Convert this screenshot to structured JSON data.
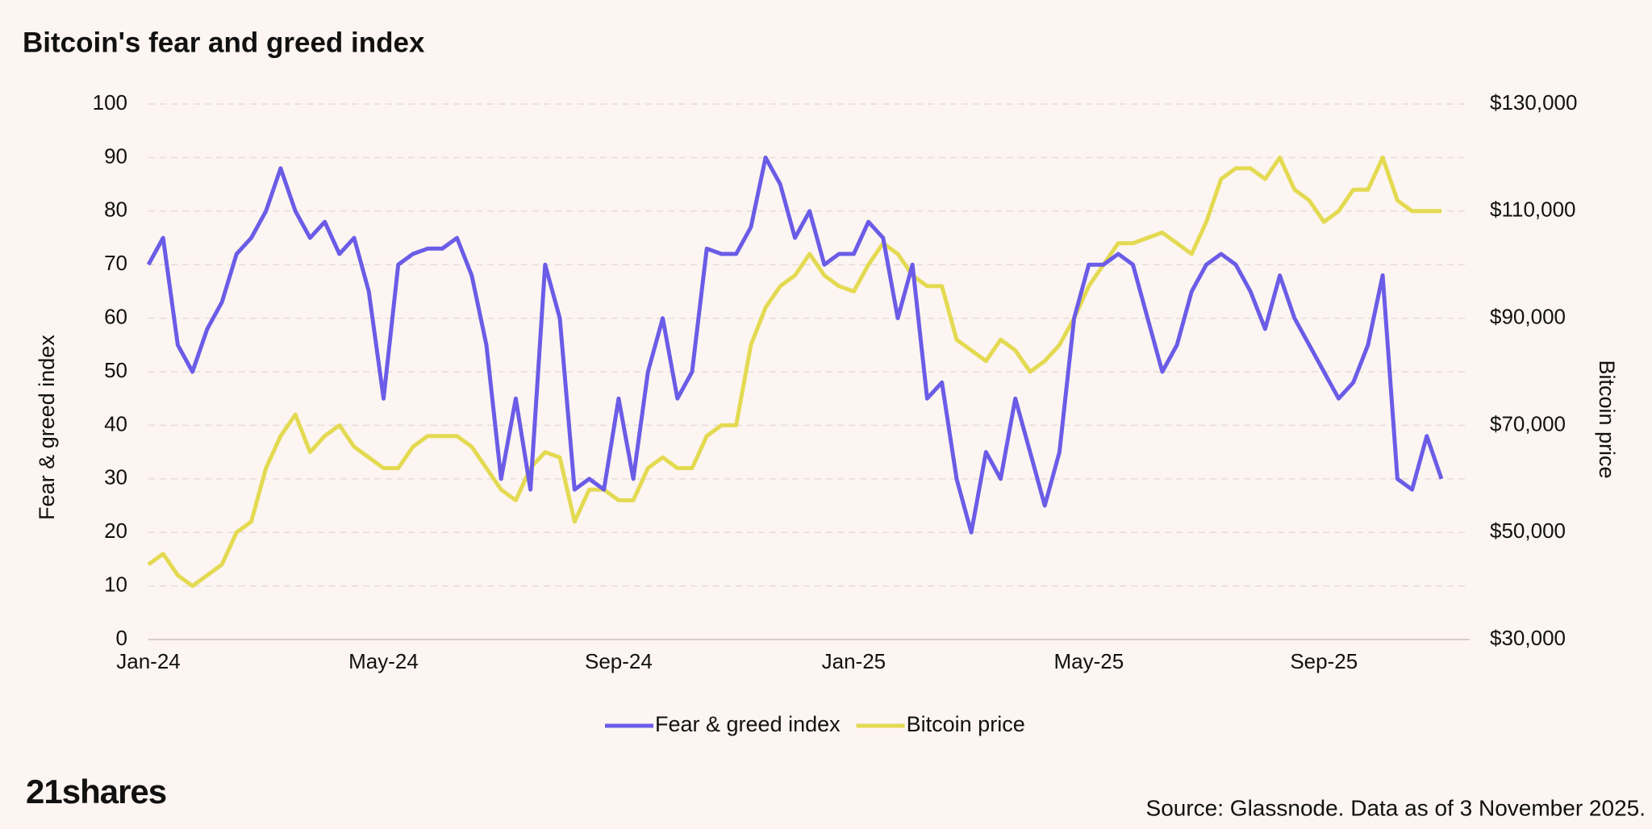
{
  "chart_data": {
    "type": "line",
    "title": "Bitcoin's fear and greed index",
    "ylabel": "Fear & greed index",
    "y2label": "Bitcoin price",
    "source": "Source: Glassnode. Data as of 3 November 2025.",
    "logo": "21shares",
    "categories": [
      "Jan-24",
      null,
      null,
      null,
      null,
      null,
      null,
      null,
      null,
      null,
      null,
      null,
      null,
      null,
      null,
      null,
      "May-24",
      null,
      null,
      null,
      null,
      null,
      null,
      null,
      null,
      null,
      null,
      null,
      null,
      null,
      null,
      null,
      "Sep-24",
      null,
      null,
      null,
      null,
      null,
      null,
      null,
      null,
      null,
      null,
      null,
      null,
      null,
      null,
      null,
      "Jan-25",
      null,
      null,
      null,
      null,
      null,
      null,
      null,
      null,
      null,
      null,
      null,
      null,
      null,
      null,
      null,
      "May-25",
      null,
      null,
      null,
      null,
      null,
      null,
      null,
      null,
      null,
      null,
      null,
      null,
      null,
      null,
      null,
      "Sep-25",
      null,
      null,
      null,
      null,
      null,
      null,
      null,
      null
    ],
    "series": [
      {
        "name": "Fear & greed index",
        "color": "#6b5ce7",
        "axis": "y",
        "values": [
          70,
          75,
          55,
          50,
          58,
          63,
          72,
          75,
          80,
          88,
          80,
          75,
          78,
          72,
          75,
          65,
          45,
          70,
          72,
          73,
          73,
          75,
          68,
          55,
          30,
          45,
          28,
          70,
          60,
          28,
          30,
          28,
          45,
          30,
          50,
          60,
          45,
          50,
          73,
          72,
          72,
          77,
          90,
          85,
          75,
          80,
          70,
          72,
          72,
          78,
          75,
          60,
          70,
          45,
          48,
          30,
          20,
          35,
          30,
          45,
          35,
          25,
          35,
          60,
          70,
          70,
          72,
          70,
          60,
          50,
          55,
          65,
          70,
          72,
          70,
          65,
          58,
          68,
          60,
          55,
          50,
          45,
          48,
          55,
          68,
          30,
          28,
          38,
          30
        ]
      },
      {
        "name": "Bitcoin price",
        "color": "#e3da52",
        "axis": "y2",
        "values": [
          44000,
          46000,
          42000,
          40000,
          42000,
          44000,
          50000,
          52000,
          62000,
          68000,
          72000,
          65000,
          68000,
          70000,
          66000,
          64000,
          62000,
          62000,
          66000,
          68000,
          68000,
          68000,
          66000,
          62000,
          58000,
          56000,
          62000,
          65000,
          64000,
          52000,
          58000,
          58000,
          56000,
          56000,
          62000,
          64000,
          62000,
          62000,
          68000,
          70000,
          70000,
          85000,
          92000,
          96000,
          98000,
          102000,
          98000,
          96000,
          95000,
          100000,
          104000,
          102000,
          98000,
          96000,
          96000,
          86000,
          84000,
          82000,
          86000,
          84000,
          80000,
          82000,
          85000,
          90000,
          96000,
          100000,
          104000,
          104000,
          105000,
          106000,
          104000,
          102000,
          108000,
          116000,
          118000,
          118000,
          116000,
          120000,
          114000,
          112000,
          108000,
          110000,
          114000,
          114000,
          120000,
          112000,
          110000,
          110000,
          110000
        ]
      }
    ],
    "ylim": [
      0,
      100
    ],
    "yticks": [
      0,
      10,
      20,
      30,
      40,
      50,
      60,
      70,
      80,
      90,
      100
    ],
    "y2lim": [
      30000,
      130000
    ],
    "y2ticks": [
      {
        "value": 30000,
        "label": "$30,000"
      },
      {
        "value": 50000,
        "label": "$50,000"
      },
      {
        "value": 70000,
        "label": "$70,000"
      },
      {
        "value": 90000,
        "label": "$90,000"
      },
      {
        "value": 110000,
        "label": "$110,000"
      },
      {
        "value": 130000,
        "label": "$130,000"
      }
    ],
    "grid": true,
    "legend": "bottom"
  }
}
